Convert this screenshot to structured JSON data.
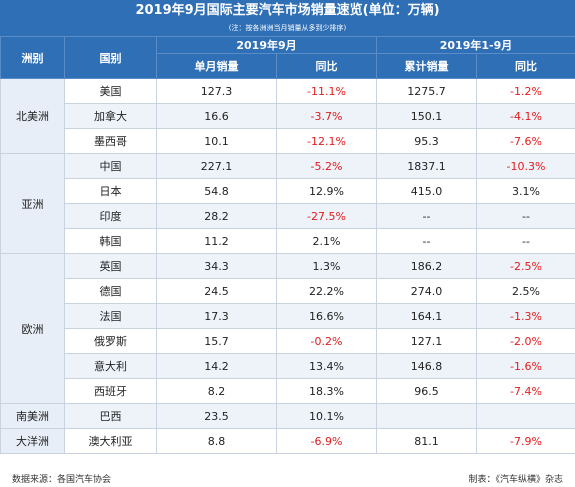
{
  "title": "2019年9月国际主要汽车市场销量速览(单位：万辆)",
  "subtitle": "(注：按各洲洲当月销量从多到少排序)",
  "headers": {
    "region": "洲别",
    "country": "国别",
    "group_month": "2019年9月",
    "group_ytd": "2019年1-9月",
    "monthly_sales": "单月销量",
    "yoy1": "同比",
    "ytd_sales": "累计销量",
    "yoy2": "同比"
  },
  "regions": [
    {
      "name": "北美洲",
      "rows": [
        {
          "country": "美国",
          "month": "127.3",
          "yoy_m": "-11.1%",
          "ytd": "1275.7",
          "yoy_y": "-1.2%"
        },
        {
          "country": "加拿大",
          "month": "16.6",
          "yoy_m": "-3.7%",
          "ytd": "150.1",
          "yoy_y": "-4.1%"
        },
        {
          "country": "墨西哥",
          "month": "10.1",
          "yoy_m": "-12.1%",
          "ytd": "95.3",
          "yoy_y": "-7.6%"
        }
      ]
    },
    {
      "name": "亚洲",
      "rows": [
        {
          "country": "中国",
          "month": "227.1",
          "yoy_m": "-5.2%",
          "ytd": "1837.1",
          "yoy_y": "-10.3%"
        },
        {
          "country": "日本",
          "month": "54.8",
          "yoy_m": "12.9%",
          "ytd": "415.0",
          "yoy_y": "3.1%"
        },
        {
          "country": "印度",
          "month": "28.2",
          "yoy_m": "-27.5%",
          "ytd": "--",
          "yoy_y": "--"
        },
        {
          "country": "韩国",
          "month": "11.2",
          "yoy_m": "2.1%",
          "ytd": "--",
          "yoy_y": "--"
        }
      ]
    },
    {
      "name": "欧洲",
      "rows": [
        {
          "country": "英国",
          "month": "34.3",
          "yoy_m": "1.3%",
          "ytd": "186.2",
          "yoy_y": "-2.5%"
        },
        {
          "country": "德国",
          "month": "24.5",
          "yoy_m": "22.2%",
          "ytd": "274.0",
          "yoy_y": "2.5%"
        },
        {
          "country": "法国",
          "month": "17.3",
          "yoy_m": "16.6%",
          "ytd": "164.1",
          "yoy_y": "-1.3%"
        },
        {
          "country": "俄罗斯",
          "month": "15.7",
          "yoy_m": "-0.2%",
          "ytd": "127.1",
          "yoy_y": "-2.0%"
        },
        {
          "country": "意大利",
          "month": "14.2",
          "yoy_m": "13.4%",
          "ytd": "146.8",
          "yoy_y": "-1.6%"
        },
        {
          "country": "西班牙",
          "month": "8.2",
          "yoy_m": "18.3%",
          "ytd": "96.5",
          "yoy_y": "-7.4%"
        }
      ]
    },
    {
      "name": "南美洲",
      "rows": [
        {
          "country": "巴西",
          "month": "23.5",
          "yoy_m": "10.1%",
          "ytd": "",
          "yoy_y": ""
        }
      ]
    },
    {
      "name": "大洋洲",
      "rows": [
        {
          "country": "澳大利亚",
          "month": "8.8",
          "yoy_m": "-6.9%",
          "ytd": "81.1",
          "yoy_y": "-7.9%"
        }
      ]
    }
  ],
  "footer": {
    "source": "数据来源：各国汽车协会",
    "credit": "制表：《汽车纵横》杂志"
  },
  "colors": {
    "header_bg": "#2f6fb6",
    "negative": "#e31c1c",
    "zebra": "#eef3f9"
  }
}
